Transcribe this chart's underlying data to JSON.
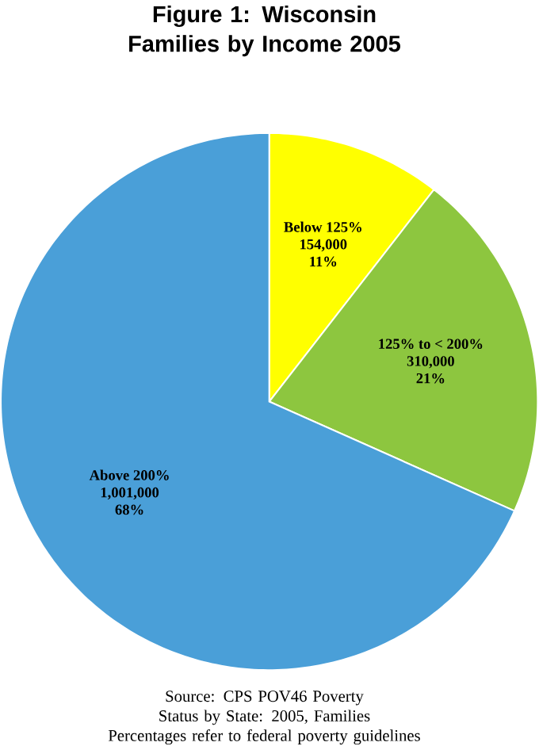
{
  "chart_data": {
    "type": "pie",
    "title": "Figure 1: Wisconsin Families by Income 2005",
    "categories": [
      "Below 125%",
      "125% to < 200%",
      "Above 200%"
    ],
    "values": [
      154000,
      310000,
      1001000
    ],
    "value_labels": [
      "154,000",
      "310,000",
      "1,001,000"
    ],
    "colors": [
      "#ffff00",
      "#8dc63f",
      "#4a9fd8"
    ],
    "annotations": [
      {
        "text": "11%",
        "x": "Below 125%"
      },
      {
        "text": "21%",
        "x": "125% to < 200%"
      },
      {
        "text": "68%",
        "x": "Above 200%"
      },
      "Source: CPS POV46 Poverty Status by State: 2005, Families",
      "Percentages refer to federal poverty guidelines"
    ],
    "legend": false
  }
}
